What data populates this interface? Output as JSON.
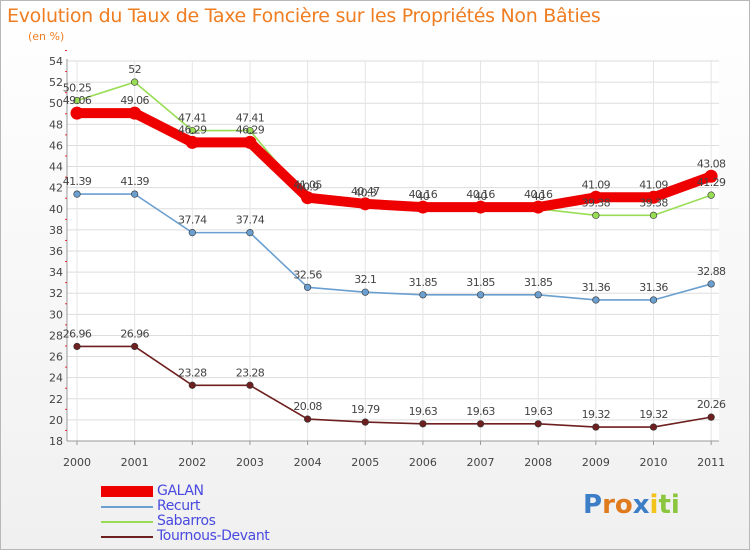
{
  "chart_data": {
    "type": "line",
    "title": "Evolution du Taux de Taxe Foncière sur les Propriétés Non Bâties",
    "subtitle": "(en %)",
    "xlabel": "",
    "ylabel": "",
    "categories": [
      "2000",
      "2001",
      "2002",
      "2003",
      "2004",
      "2005",
      "2006",
      "2007",
      "2008",
      "2009",
      "2010",
      "2011"
    ],
    "ylim": [
      18,
      54
    ],
    "yticks": [
      18,
      20,
      22,
      24,
      26,
      28,
      30,
      32,
      34,
      36,
      38,
      40,
      42,
      44,
      46,
      48,
      50,
      52,
      54
    ],
    "grid": true,
    "legend_position": "bottom-left",
    "series": [
      {
        "name": "Tournous-Devant",
        "color": "#6e1f1f",
        "values": [
          26.96,
          26.96,
          23.28,
          23.28,
          20.08,
          19.79,
          19.63,
          19.63,
          19.63,
          19.32,
          19.32,
          20.26
        ],
        "labels": [
          "26.96",
          "26.96",
          "23.28",
          "23.28",
          "20.08",
          "19.79",
          "19.63",
          "19.63",
          "19.63",
          "19.32",
          "19.32",
          "20.26"
        ]
      },
      {
        "name": "Recurt",
        "color": "#6a9fd0",
        "values": [
          41.39,
          41.39,
          37.74,
          37.74,
          32.56,
          32.1,
          31.85,
          31.85,
          31.85,
          31.36,
          31.36,
          32.88
        ],
        "labels": [
          "41.39",
          "41.39",
          "37.74",
          "37.74",
          "32.56",
          "32.1",
          "31.85",
          "31.85",
          "31.85",
          "31.36",
          "31.36",
          "32.88"
        ]
      },
      {
        "name": "Sabarros",
        "color": "#99dd55",
        "values": [
          50.25,
          52,
          47.41,
          47.41,
          40.9,
          40.3,
          40,
          40,
          40,
          39.38,
          39.38,
          41.29
        ],
        "labels": [
          "50.25",
          "52",
          "47.41",
          "47.41",
          "40.9",
          "40.3",
          "40",
          "40",
          "40",
          "39.38",
          "39.38",
          "41.29"
        ]
      },
      {
        "name": "GALAN",
        "color": "#ee0000",
        "values": [
          49.06,
          49.06,
          46.29,
          46.29,
          41.05,
          40.47,
          40.16,
          40.16,
          40.16,
          41.09,
          41.09,
          43.08
        ],
        "labels": [
          "49.06",
          "49.06",
          "46.29",
          "46.29",
          "41.05",
          "40.47",
          "40.16",
          "40.16",
          "40.16",
          "41.09",
          "41.09",
          "43.08"
        ]
      }
    ]
  },
  "legend": {
    "items": [
      {
        "name": "GALAN",
        "color": "#ee0000"
      },
      {
        "name": "Recurt",
        "color": "#6a9fd0"
      },
      {
        "name": "Sabarros",
        "color": "#99dd55"
      },
      {
        "name": "Tournous-Devant",
        "color": "#6e1f1f"
      }
    ]
  },
  "logo": {
    "letters": [
      {
        "ch": "P",
        "color": "#3d7fc6"
      },
      {
        "ch": "r",
        "color": "#e07a1f"
      },
      {
        "ch": "o",
        "color": "#e07a1f"
      },
      {
        "ch": "x",
        "color": "#3d7fc6"
      },
      {
        "ch": "i",
        "color": "#f2c318"
      },
      {
        "ch": "t",
        "color": "#8cc63e"
      },
      {
        "ch": "i",
        "color": "#8cc63e"
      }
    ]
  }
}
